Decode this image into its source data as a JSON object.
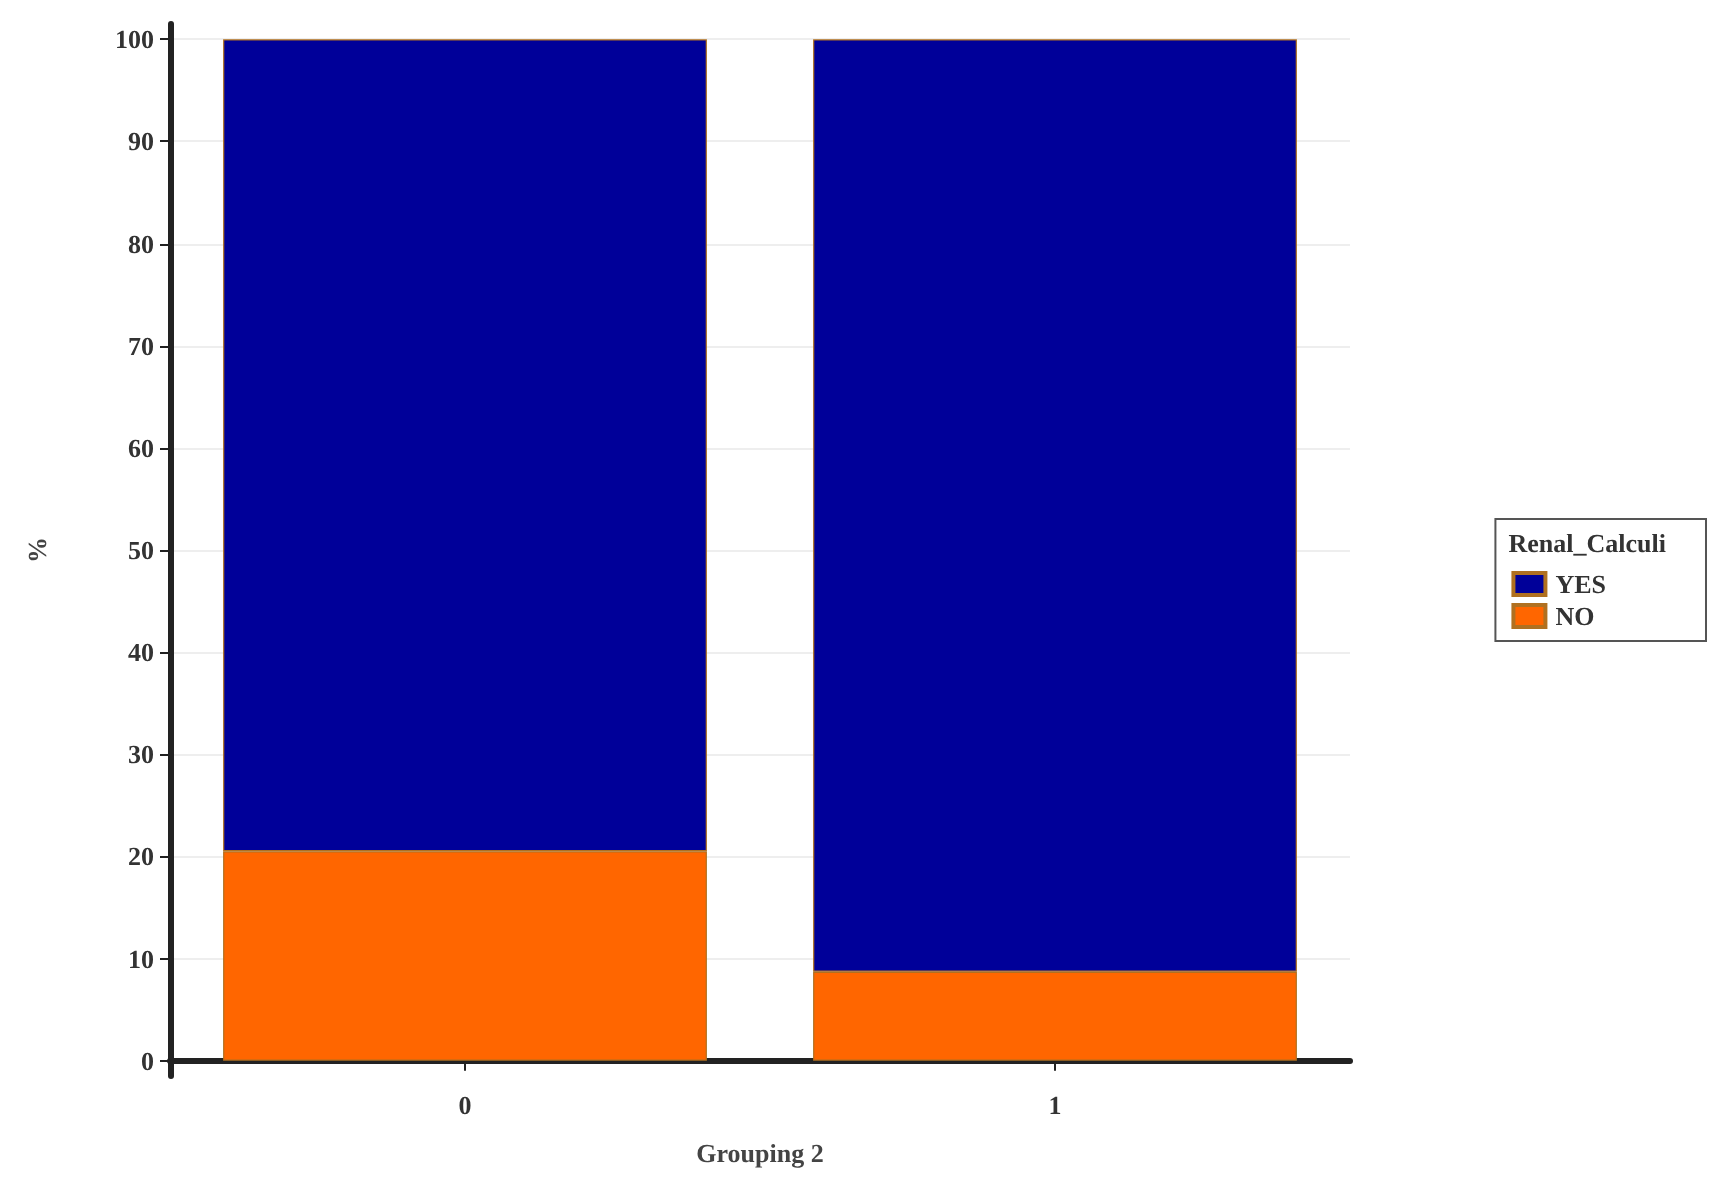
{
  "chart_data": {
    "type": "bar",
    "xlabel": "Grouping 2",
    "ylabel": "%",
    "legend_title": "Renal_Calculi",
    "categories": [
      "0",
      "1"
    ],
    "stacked": true,
    "series": [
      {
        "name": "NO",
        "color": "#ff6600",
        "values": [
          20.5,
          8.7
        ]
      },
      {
        "name": "YES",
        "color": "#000099",
        "values": [
          79.5,
          91.3
        ]
      }
    ],
    "ylim": [
      -1.5,
      101.5
    ],
    "yticks": [
      0,
      10,
      20,
      30,
      40,
      50,
      60,
      70,
      80,
      90,
      100
    ],
    "grid": "y",
    "legend": "right"
  }
}
